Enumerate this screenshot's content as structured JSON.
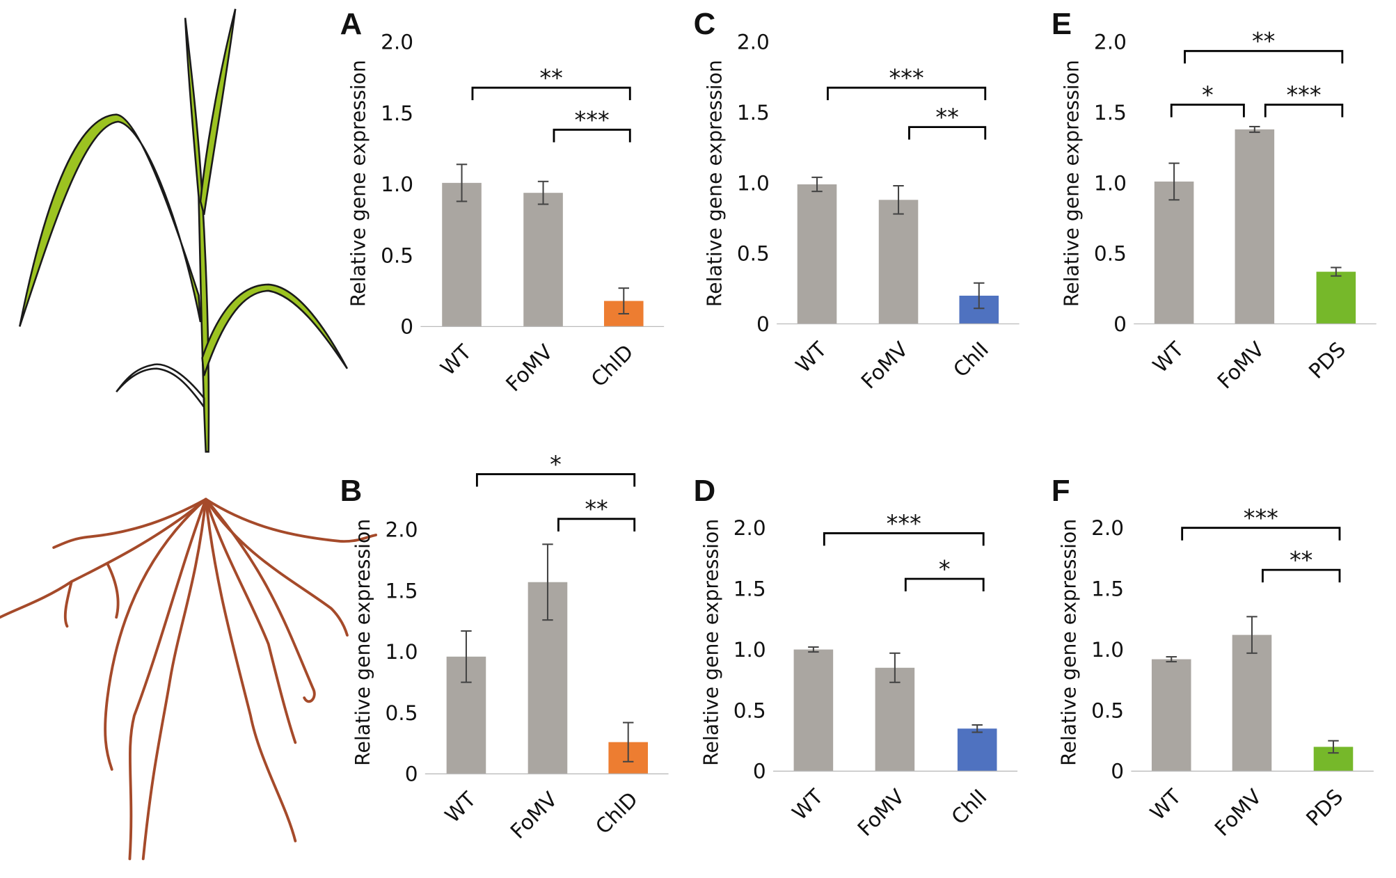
{
  "chart_data": [
    {
      "type": "bar",
      "panel_label": "A",
      "ylabel": "Relative gene expression",
      "categories": [
        "WT",
        "FoMV",
        "ChlD"
      ],
      "values": [
        1.01,
        0.94,
        0.18
      ],
      "errors": [
        0.13,
        0.08,
        0.09
      ],
      "colors": [
        "#aaa6a1",
        "#aaa6a1",
        "#ed7d31"
      ],
      "ylim": [
        0,
        2
      ],
      "yticks": [
        0,
        0.5,
        {
          "value": 1,
          "label": "1.0"
        },
        1.5,
        {
          "value": 2,
          "label": "2.0"
        }
      ],
      "significance": [
        {
          "from": 0,
          "to": 2,
          "label": "**"
        },
        {
          "from": 1,
          "to": 2,
          "label": "***"
        }
      ]
    },
    {
      "type": "bar",
      "panel_label": "B",
      "ylabel": "Relative gene expression",
      "categories": [
        "WT",
        "FoMV",
        "ChlD"
      ],
      "values": [
        0.96,
        1.57,
        0.26
      ],
      "errors": [
        0.21,
        0.31,
        0.16
      ],
      "colors": [
        "#aaa6a1",
        "#aaa6a1",
        "#ed7d31"
      ],
      "ylim": [
        0,
        2
      ],
      "yticks": [
        0,
        0.5,
        {
          "value": 1,
          "label": "1.0"
        },
        1.5,
        {
          "value": 2,
          "label": "2.0"
        }
      ],
      "significance": [
        {
          "from": 0,
          "to": 2,
          "label": "*"
        },
        {
          "from": 1,
          "to": 2,
          "label": "**"
        }
      ]
    },
    {
      "type": "bar",
      "panel_label": "C",
      "ylabel": "Relative gene expression",
      "categories": [
        "WT",
        "FoMV",
        "ChlI"
      ],
      "values": [
        0.99,
        0.88,
        0.2
      ],
      "errors": [
        0.05,
        0.1,
        0.09
      ],
      "colors": [
        "#aaa6a1",
        "#aaa6a1",
        "#4f72c0"
      ],
      "ylim": [
        0,
        2
      ],
      "yticks": [
        0,
        0.5,
        {
          "value": 1,
          "label": "1.0"
        },
        1.5,
        {
          "value": 2,
          "label": "2.0"
        }
      ],
      "significance": [
        {
          "from": 0,
          "to": 2,
          "label": "***"
        },
        {
          "from": 1,
          "to": 2,
          "label": "**"
        }
      ]
    },
    {
      "type": "bar",
      "panel_label": "D",
      "ylabel": "Relative gene expression",
      "categories": [
        "WT",
        "FoMV",
        "ChlI"
      ],
      "values": [
        1.0,
        0.85,
        0.35
      ],
      "errors": [
        0.02,
        0.12,
        0.03
      ],
      "colors": [
        "#aaa6a1",
        "#aaa6a1",
        "#4f72c0"
      ],
      "ylim": [
        0,
        2
      ],
      "yticks": [
        0,
        0.5,
        {
          "value": 1,
          "label": "1.0"
        },
        1.5,
        {
          "value": 2,
          "label": "2.0"
        }
      ],
      "significance": [
        {
          "from": 0,
          "to": 2,
          "label": "***"
        },
        {
          "from": 1,
          "to": 2,
          "label": "*"
        }
      ]
    },
    {
      "type": "bar",
      "panel_label": "E",
      "ylabel": "Relative gene expression",
      "categories": [
        "WT",
        "FoMV",
        "PDS"
      ],
      "values": [
        1.01,
        1.38,
        0.37
      ],
      "errors": [
        0.13,
        0.02,
        0.03
      ],
      "colors": [
        "#aaa6a1",
        "#aaa6a1",
        "#76b82a"
      ],
      "ylim": [
        0,
        2
      ],
      "yticks": [
        0,
        0.5,
        {
          "value": 1,
          "label": "1.0"
        },
        1.5,
        {
          "value": 2,
          "label": "2.0"
        }
      ],
      "significance": [
        {
          "from": 0,
          "to": 2,
          "label": "**"
        },
        {
          "from": 0,
          "to": 1,
          "label": "*"
        },
        {
          "from": 1,
          "to": 2,
          "label": "***"
        }
      ]
    },
    {
      "type": "bar",
      "panel_label": "F",
      "ylabel": "Relative gene expression",
      "categories": [
        "WT",
        "FoMV",
        "PDS"
      ],
      "values": [
        0.92,
        1.12,
        0.2
      ],
      "errors": [
        0.02,
        0.15,
        0.05
      ],
      "colors": [
        "#aaa6a1",
        "#aaa6a1",
        "#76b82a"
      ],
      "ylim": [
        0,
        2
      ],
      "yticks": [
        0,
        0.5,
        {
          "value": 1,
          "label": "1.0"
        },
        1.5,
        {
          "value": 2,
          "label": "2.0"
        }
      ],
      "significance": [
        {
          "from": 0,
          "to": 2,
          "label": "***"
        },
        {
          "from": 1,
          "to": 2,
          "label": "**"
        }
      ]
    }
  ]
}
